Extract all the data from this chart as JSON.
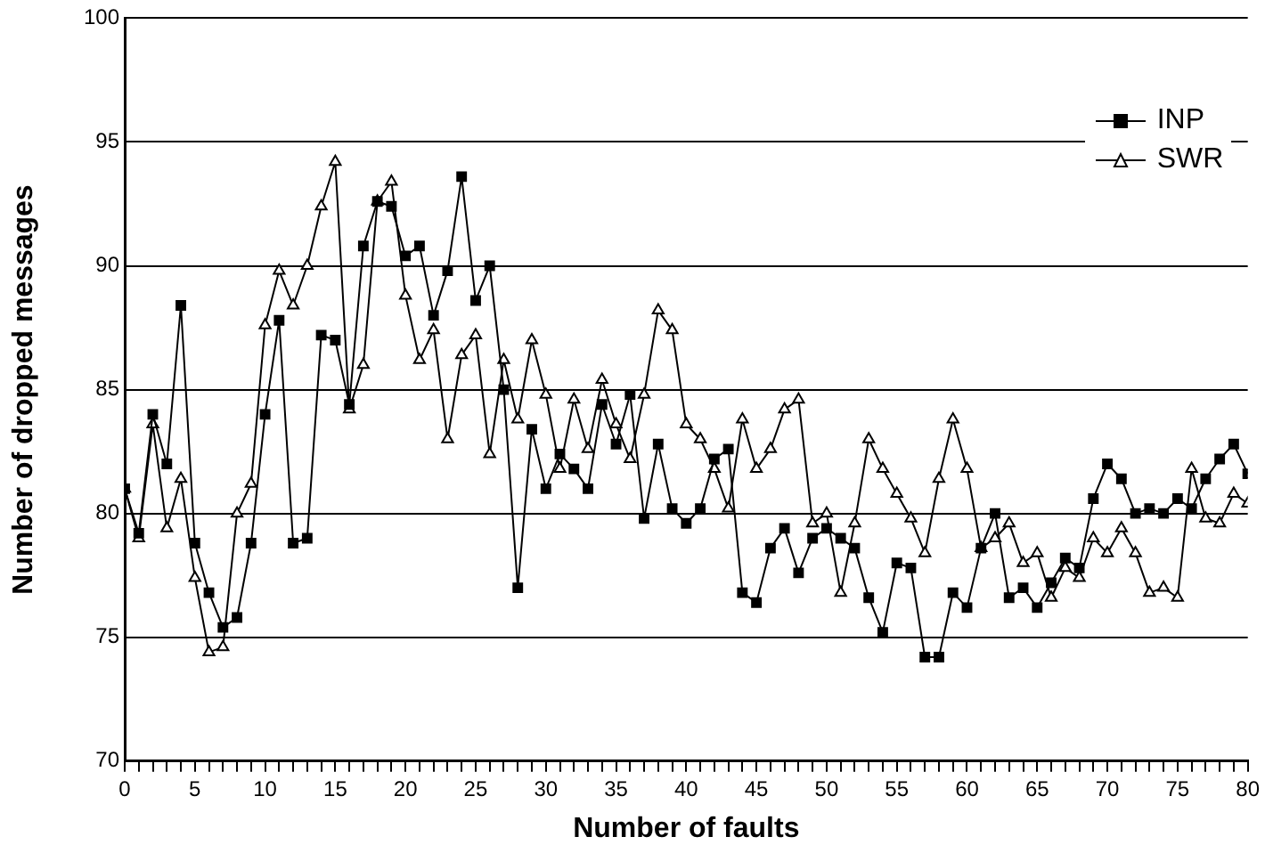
{
  "chart_data": {
    "type": "line",
    "xlabel": "Number of faults",
    "ylabel": "Number of dropped messages",
    "x": [
      0,
      1,
      2,
      3,
      4,
      5,
      6,
      7,
      8,
      9,
      10,
      11,
      12,
      13,
      14,
      15,
      16,
      17,
      18,
      19,
      20,
      21,
      22,
      23,
      24,
      25,
      26,
      27,
      28,
      29,
      30,
      31,
      32,
      33,
      34,
      35,
      36,
      37,
      38,
      39,
      40,
      41,
      42,
      43,
      44,
      45,
      46,
      47,
      48,
      49,
      50,
      51,
      52,
      53,
      54,
      55,
      56,
      57,
      58,
      59,
      60,
      61,
      62,
      63,
      64,
      65,
      66,
      67,
      68,
      69,
      70,
      71,
      72,
      73,
      74,
      75,
      76,
      77,
      78,
      79,
      80
    ],
    "series": [
      {
        "name": "INP",
        "color": "#000000",
        "marker": "square",
        "values": [
          81.0,
          79.2,
          84.0,
          82.0,
          88.4,
          78.8,
          76.8,
          75.4,
          75.8,
          78.8,
          84.0,
          87.8,
          78.8,
          79.0,
          87.2,
          87.0,
          84.4,
          90.8,
          92.6,
          92.4,
          90.4,
          90.8,
          88.0,
          89.8,
          93.6,
          88.6,
          90.0,
          85.0,
          77.0,
          83.4,
          81.0,
          82.4,
          81.8,
          81.0,
          84.4,
          82.8,
          84.8,
          79.8,
          82.8,
          80.2,
          79.6,
          80.2,
          82.2,
          82.6,
          76.8,
          76.4,
          78.6,
          79.4,
          77.6,
          79.0,
          79.4,
          79.0,
          78.6,
          76.6,
          75.2,
          78.0,
          77.8,
          74.2,
          74.2,
          76.8,
          76.2,
          78.6,
          80.0,
          76.6,
          77.0,
          76.2,
          77.2,
          78.2,
          77.8,
          80.6,
          82.0,
          81.4,
          80.0,
          80.2,
          80.0,
          80.6,
          80.2,
          81.4,
          82.2,
          82.8,
          81.6
        ]
      },
      {
        "name": "SWR",
        "color": "#000000",
        "marker": "triangle",
        "values": [
          81.0,
          79.0,
          83.6,
          79.4,
          81.4,
          77.4,
          74.4,
          74.6,
          80.0,
          81.2,
          87.6,
          89.8,
          88.4,
          90.0,
          92.4,
          94.2,
          84.2,
          86.0,
          92.6,
          93.4,
          88.8,
          86.2,
          87.4,
          83.0,
          86.4,
          87.2,
          82.4,
          86.2,
          83.8,
          87.0,
          84.8,
          81.8,
          84.6,
          82.6,
          85.4,
          83.6,
          82.2,
          84.8,
          88.2,
          87.4,
          83.6,
          83.0,
          81.8,
          80.2,
          83.8,
          81.8,
          82.6,
          84.2,
          84.6,
          79.6,
          80.0,
          76.8,
          79.6,
          83.0,
          81.8,
          80.8,
          79.8,
          78.4,
          81.4,
          83.8,
          81.8,
          78.6,
          79.0,
          79.6,
          78.0,
          78.4,
          76.6,
          77.8,
          77.4,
          79.0,
          78.4,
          79.4,
          78.4,
          76.8,
          77.0,
          76.6,
          81.8,
          79.8,
          79.6,
          80.8,
          80.4
        ]
      }
    ],
    "xlim": [
      0,
      80
    ],
    "xticks": [
      0,
      {
        "value": 1,
        "label": null
      },
      {
        "value": 2,
        "label": null
      },
      {
        "value": 3,
        "label": null
      },
      {
        "value": 4,
        "label": null
      },
      5,
      {
        "value": 6,
        "label": null
      },
      {
        "value": 7,
        "label": null
      },
      {
        "value": 8,
        "label": null
      },
      {
        "value": 9,
        "label": null
      },
      10,
      {
        "value": 11,
        "label": null
      },
      {
        "value": 12,
        "label": null
      },
      {
        "value": 13,
        "label": null
      },
      {
        "value": 14,
        "label": null
      },
      15,
      {
        "value": 16,
        "label": null
      },
      {
        "value": 17,
        "label": null
      },
      {
        "value": 18,
        "label": null
      },
      {
        "value": 19,
        "label": null
      },
      20,
      {
        "value": 21,
        "label": null
      },
      {
        "value": 22,
        "label": null
      },
      {
        "value": 23,
        "label": null
      },
      {
        "value": 24,
        "label": null
      },
      25,
      {
        "value": 26,
        "label": null
      },
      {
        "value": 27,
        "label": null
      },
      {
        "value": 28,
        "label": null
      },
      {
        "value": 29,
        "label": null
      },
      30,
      {
        "value": 31,
        "label": null
      },
      {
        "value": 32,
        "label": null
      },
      {
        "value": 33,
        "label": null
      },
      {
        "value": 34,
        "label": null
      },
      35,
      {
        "value": 36,
        "label": null
      },
      {
        "value": 37,
        "label": null
      },
      {
        "value": 38,
        "label": null
      },
      {
        "value": 39,
        "label": null
      },
      40,
      {
        "value": 41,
        "label": null
      },
      {
        "value": 42,
        "label": null
      },
      {
        "value": 43,
        "label": null
      },
      {
        "value": 44,
        "label": null
      },
      45,
      {
        "value": 46,
        "label": null
      },
      {
        "value": 47,
        "label": null
      },
      {
        "value": 48,
        "label": null
      },
      {
        "value": 49,
        "label": null
      },
      50,
      {
        "value": 51,
        "label": null
      },
      {
        "value": 52,
        "label": null
      },
      {
        "value": 53,
        "label": null
      },
      {
        "value": 54,
        "label": null
      },
      55,
      {
        "value": 56,
        "label": null
      },
      {
        "value": 57,
        "label": null
      },
      {
        "value": 58,
        "label": null
      },
      {
        "value": 59,
        "label": null
      },
      60,
      {
        "value": 61,
        "label": null
      },
      {
        "value": 62,
        "label": null
      },
      {
        "value": 63,
        "label": null
      },
      {
        "value": 64,
        "label": null
      },
      65,
      {
        "value": 66,
        "label": null
      },
      {
        "value": 67,
        "label": null
      },
      {
        "value": 68,
        "label": null
      },
      {
        "value": 69,
        "label": null
      },
      70,
      {
        "value": 71,
        "label": null
      },
      {
        "value": 72,
        "label": null
      },
      {
        "value": 73,
        "label": null
      },
      {
        "value": 74,
        "label": null
      },
      75,
      {
        "value": 76,
        "label": null
      },
      {
        "value": 77,
        "label": null
      },
      {
        "value": 78,
        "label": null
      },
      {
        "value": 79,
        "label": null
      },
      80
    ],
    "ylim": [
      70,
      100
    ],
    "yticks": [
      70,
      75,
      80,
      85,
      90,
      95,
      100
    ],
    "grid": "y",
    "legend": "top right",
    "line_style": "solid"
  }
}
